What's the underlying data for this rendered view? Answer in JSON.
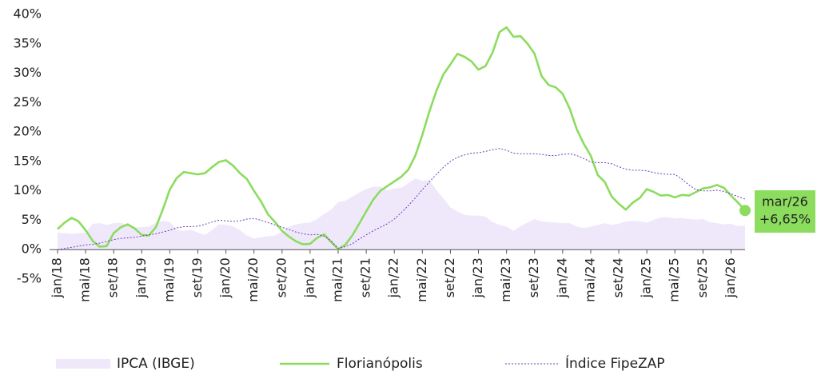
{
  "chart_data": {
    "type": "line",
    "categories": [
      "jan/18",
      null,
      null,
      null,
      "mai/18",
      null,
      null,
      null,
      "set/18",
      null,
      null,
      null,
      "jan/19",
      null,
      null,
      null,
      "mai/19",
      null,
      null,
      null,
      "set/19",
      null,
      null,
      null,
      "jan/20",
      null,
      null,
      null,
      "mai/20",
      null,
      null,
      null,
      "set/20",
      null,
      null,
      null,
      "jan/21",
      null,
      null,
      null,
      "mai/21",
      null,
      null,
      null,
      "set/21",
      null,
      null,
      null,
      "jan/22",
      null,
      null,
      null,
      "mai/22",
      null,
      null,
      null,
      "set/22",
      null,
      null,
      null,
      "jan/23",
      null,
      null,
      null,
      "mai/23",
      null,
      null,
      null,
      "set/23",
      null,
      null,
      null,
      "jan/24",
      null,
      null,
      null,
      "mai/24",
      null,
      null,
      null,
      "set/24",
      null,
      null,
      null,
      "jan/25",
      null,
      null,
      null,
      "mai/25",
      null,
      null,
      null,
      "set/25",
      null,
      null,
      null,
      "jan/26",
      null,
      null
    ],
    "series": [
      {
        "name": "IPCA (IBGE)",
        "kind": "area",
        "color": "#efe8fb",
        "values": [
          2.9,
          2.8,
          2.7,
          2.8,
          2.9,
          4.4,
          4.5,
          4.2,
          4.5,
          4.6,
          4.1,
          3.8,
          3.8,
          3.9,
          4.6,
          4.9,
          4.7,
          3.4,
          3.2,
          3.4,
          2.9,
          2.5,
          3.3,
          4.3,
          4.2,
          4.0,
          3.3,
          2.4,
          1.9,
          2.1,
          2.3,
          2.4,
          3.1,
          3.9,
          4.3,
          4.5,
          4.6,
          5.2,
          6.1,
          6.8,
          8.1,
          8.3,
          9.0,
          9.7,
          10.3,
          10.7,
          10.7,
          10.1,
          10.4,
          10.5,
          11.3,
          12.1,
          11.7,
          11.9,
          10.1,
          8.7,
          7.2,
          6.5,
          5.9,
          5.8,
          5.8,
          5.6,
          4.7,
          4.2,
          3.9,
          3.2,
          4.0,
          4.6,
          5.2,
          4.8,
          4.7,
          4.6,
          4.5,
          4.5,
          3.9,
          3.7,
          3.9,
          4.2,
          4.5,
          4.2,
          4.4,
          4.8,
          4.9,
          4.8,
          4.6,
          5.1,
          5.5,
          5.5,
          5.3,
          5.4,
          5.2,
          5.1,
          5.2,
          4.7,
          4.5,
          4.3,
          4.4,
          4.0,
          4.1
        ]
      },
      {
        "name": "Florianópolis",
        "kind": "line",
        "color": "#8cdc5e",
        "values": [
          3.5,
          4.6,
          5.4,
          4.8,
          3.3,
          1.5,
          0.5,
          0.6,
          2.8,
          3.8,
          4.3,
          3.6,
          2.5,
          2.4,
          3.8,
          6.8,
          10.2,
          12.2,
          13.2,
          13.0,
          12.8,
          13.0,
          14.0,
          14.9,
          15.2,
          14.3,
          13.0,
          12.0,
          10.0,
          8.2,
          6.0,
          4.7,
          3.2,
          2.2,
          1.4,
          0.9,
          1.0,
          2.0,
          2.6,
          1.3,
          0.1,
          0.8,
          2.4,
          4.4,
          6.5,
          8.5,
          10.0,
          10.8,
          11.6,
          12.4,
          13.6,
          16.0,
          19.5,
          23.5,
          27.0,
          29.8,
          31.5,
          33.3,
          32.8,
          32.0,
          30.6,
          31.2,
          33.5,
          37.0,
          37.8,
          36.2,
          36.3,
          35.0,
          33.3,
          29.5,
          28.0,
          27.6,
          26.5,
          24.0,
          20.5,
          18.0,
          16.0,
          12.7,
          11.5,
          9.0,
          7.8,
          6.8,
          8.0,
          8.8,
          10.3,
          9.8,
          9.2,
          9.3,
          8.9,
          9.3,
          9.2,
          9.8,
          10.4,
          10.6,
          11.0,
          10.5,
          9.2,
          8.0,
          6.65
        ]
      },
      {
        "name": "Índice FipeZAP",
        "kind": "line",
        "dashed": true,
        "color": "#6b3fb4",
        "values": [
          0,
          0.2,
          0.4,
          0.6,
          0.8,
          0.9,
          1.1,
          1.4,
          1.7,
          1.9,
          2.0,
          2.1,
          2.3,
          2.5,
          2.7,
          3.0,
          3.3,
          3.7,
          3.9,
          3.9,
          4.0,
          4.3,
          4.7,
          5.0,
          4.9,
          4.8,
          4.9,
          5.2,
          5.3,
          5.0,
          4.6,
          4.2,
          3.8,
          3.4,
          3.0,
          2.7,
          2.5,
          2.6,
          2.3,
          1.5,
          0.2,
          0.5,
          1.0,
          1.8,
          2.5,
          3.2,
          3.8,
          4.4,
          5.2,
          6.3,
          7.5,
          8.8,
          10.2,
          11.5,
          12.8,
          14.0,
          15.0,
          15.7,
          16.1,
          16.4,
          16.5,
          16.7,
          17.0,
          17.2,
          16.9,
          16.4,
          16.3,
          16.3,
          16.3,
          16.2,
          16.0,
          16.0,
          16.2,
          16.3,
          16.0,
          15.5,
          14.9,
          14.8,
          14.8,
          14.6,
          14.1,
          13.7,
          13.5,
          13.5,
          13.4,
          13.1,
          12.9,
          12.8,
          12.8,
          12.0,
          11.0,
          10.2,
          10.0,
          10.0,
          10.1,
          9.9,
          9.5,
          9.0,
          8.6
        ]
      }
    ],
    "end_annotation": {
      "category": "mar/26",
      "value_label": "+6,65%"
    },
    "ylim": [
      -5,
      40
    ],
    "yticks": [
      {
        "value": -5,
        "label": "-5%"
      },
      {
        "value": 0,
        "label": "0%"
      },
      {
        "value": 5,
        "label": "5%"
      },
      {
        "value": 10,
        "label": "10%"
      },
      {
        "value": 15,
        "label": "15%"
      },
      {
        "value": 20,
        "label": "20%"
      },
      {
        "value": 25,
        "label": "25%"
      },
      {
        "value": 30,
        "label": "30%"
      },
      {
        "value": 35,
        "label": "35%"
      },
      {
        "value": 40,
        "label": "40%"
      }
    ],
    "grid": false,
    "legend": "bottom"
  }
}
